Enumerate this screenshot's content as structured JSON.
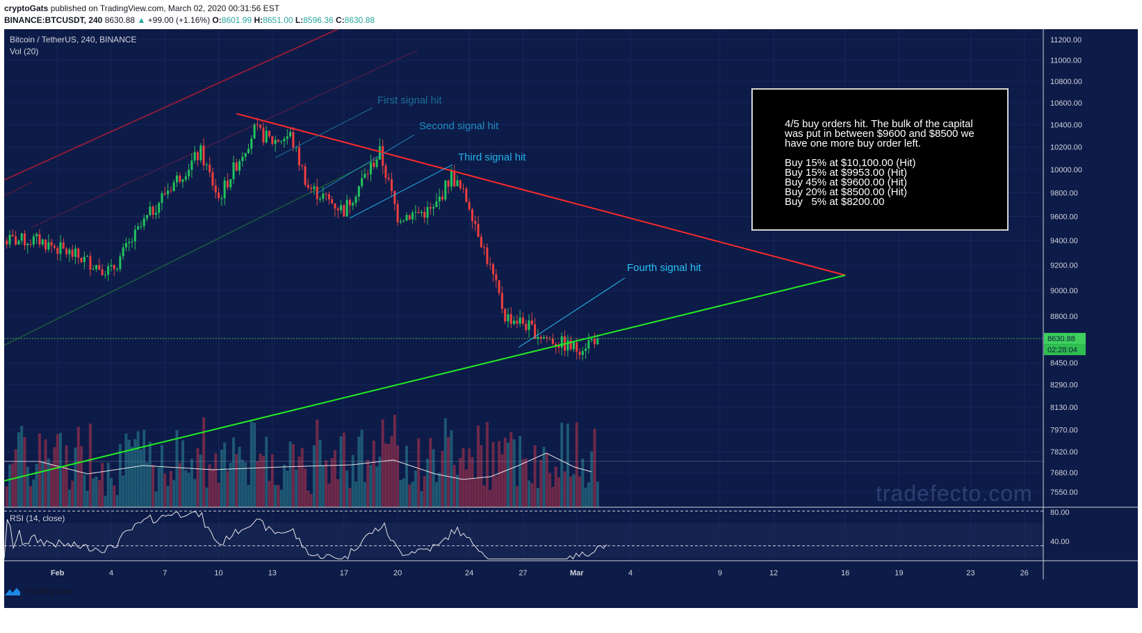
{
  "header": {
    "publisher": "cryptoGats",
    "published_text": "published on TradingView.com, March 02, 2020 00:31:56 EST",
    "symbol_line": "BINANCE:BTCUSDT, 240",
    "last": "8630.88",
    "change": "+99.00 (+1.16%)",
    "o_label": "O:",
    "o_value": "8601.99",
    "h_label": "H:",
    "h_value": "8651.00",
    "l_label": "L:",
    "l_value": "8596.36",
    "c_label": "C:",
    "c_value": "8630.88"
  },
  "pane": {
    "symbol_title": "Bitcoin / TetherUS, 240, BINANCE",
    "vol_label": "Vol (20)",
    "rsi_label": "RSI (14, close)"
  },
  "annotations": {
    "first": "First signal hit",
    "second": "Second signal hit",
    "third": "Third signal hit",
    "fourth": "Fourth signal hit"
  },
  "note": {
    "lines": [
      "4/5 buy orders hit. The bulk of the capital",
      "was put in between $9600 and $8500 we",
      "have one more buy order left.",
      "",
      "Buy 15% at $10,100.00 (Hit)",
      "Buy 15% at $9953.00 (Hit)",
      "Buy 45% at $9600.00 (Hit)",
      "Buy 20% at $8500.00 (Hit)",
      "Buy   5% at $8200.00"
    ]
  },
  "price_badge": {
    "price": "8630.88",
    "timer": "02:28:04"
  },
  "watermark": "tradefecto.com",
  "footer": {
    "brand": "TradingView"
  },
  "colors": {
    "background": "#0d1b48",
    "up": "#26a69a",
    "down": "#ef5350",
    "resistance": "#ff2a2a",
    "support": "#22ee22",
    "annotation": "#1e9fd6",
    "price_line": "#4caf50"
  },
  "chart_data": {
    "type": "candlestick",
    "title": "Bitcoin / TetherUS, 240, BINANCE",
    "y_axis": {
      "scale": "log",
      "ticks": [
        "11200.00",
        "11000.00",
        "10800.00",
        "10600.00",
        "10400.00",
        "10200.00",
        "10000.00",
        "9800.00",
        "9600.00",
        "9400.00",
        "9200.00",
        "9000.00",
        "8800.00",
        "8630.88",
        "8450.00",
        "8290.00",
        "8130.00",
        "7970.00",
        "7820.00",
        "7680.00",
        "7550.00"
      ]
    },
    "rsi_axis": {
      "ticks": [
        "80.00",
        "40.00"
      ],
      "bands": [
        70,
        30
      ]
    },
    "x_ticks": [
      "Feb",
      "4",
      "7",
      "10",
      "13",
      "17",
      "20",
      "24",
      "27",
      "Mar",
      "4",
      "9",
      "12",
      "16",
      "19",
      "23",
      "26"
    ],
    "price_path_approx": [
      {
        "date": "2020-01-31",
        "price": 9400
      },
      {
        "date": "2020-02-04",
        "price": 9150
      },
      {
        "date": "2020-02-07",
        "price": 9800
      },
      {
        "date": "2020-02-09",
        "price": 10150
      },
      {
        "date": "2020-02-10",
        "price": 9750
      },
      {
        "date": "2020-02-12",
        "price": 10350
      },
      {
        "date": "2020-02-13",
        "price": 10250
      },
      {
        "date": "2020-02-14",
        "price": 10300
      },
      {
        "date": "2020-02-15",
        "price": 9850
      },
      {
        "date": "2020-02-17",
        "price": 9650
      },
      {
        "date": "2020-02-19",
        "price": 10150
      },
      {
        "date": "2020-02-20",
        "price": 9600
      },
      {
        "date": "2020-02-22",
        "price": 9650
      },
      {
        "date": "2020-02-23",
        "price": 9950
      },
      {
        "date": "2020-02-24",
        "price": 9700
      },
      {
        "date": "2020-02-25",
        "price": 9250
      },
      {
        "date": "2020-02-26",
        "price": 8800
      },
      {
        "date": "2020-02-27",
        "price": 8750
      },
      {
        "date": "2020-02-28",
        "price": 8650
      },
      {
        "date": "2020-03-01",
        "price": 8550
      },
      {
        "date": "2020-03-02",
        "price": 8630.88
      }
    ],
    "trendlines": [
      {
        "name": "resistance",
        "from": {
          "date": "2020-02-11",
          "price": 10500
        },
        "to": {
          "date": "2020-03-16",
          "price": 9120
        }
      },
      {
        "name": "support",
        "to": {
          "date": "2020-03-16",
          "price": 9120
        }
      }
    ]
  }
}
